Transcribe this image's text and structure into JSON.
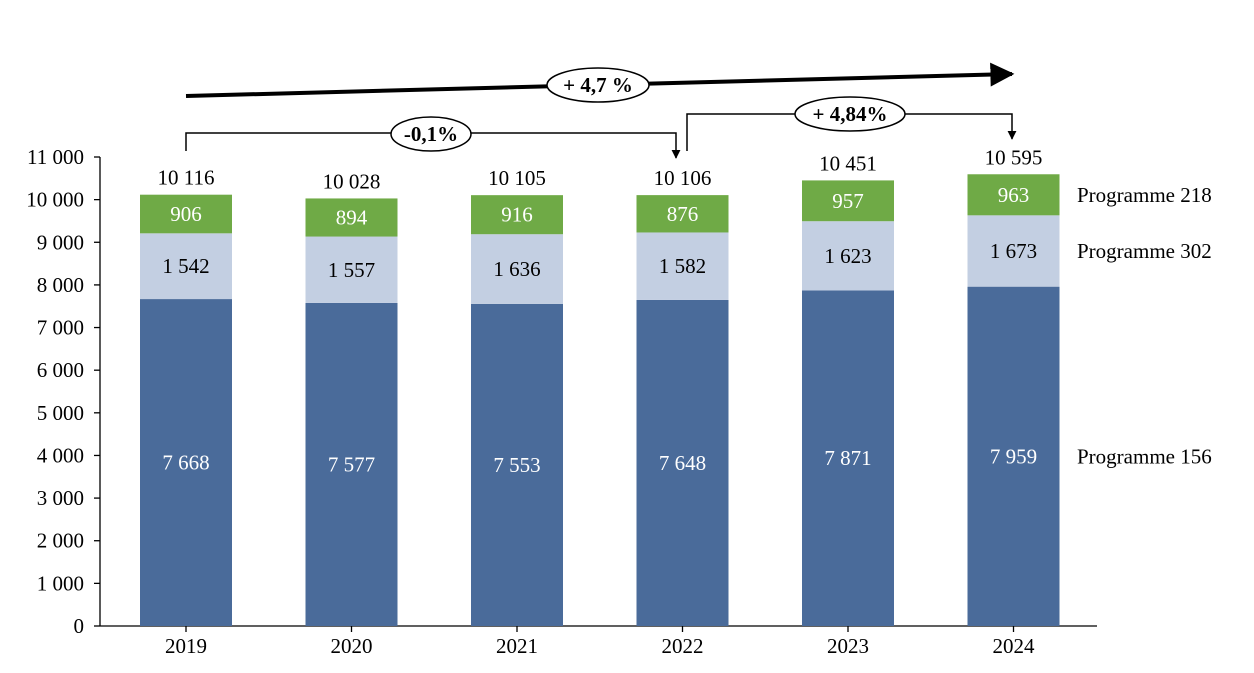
{
  "chart_data": {
    "type": "bar",
    "stacked": true,
    "categories": [
      "2019",
      "2020",
      "2021",
      "2022",
      "2023",
      "2024"
    ],
    "series": [
      {
        "name": "Programme 156",
        "color": "#4a6b9a",
        "values": [
          7668,
          7577,
          7553,
          7648,
          7871,
          7959
        ],
        "labels": [
          "7 668",
          "7 577",
          "7 553",
          "7 648",
          "7 871",
          "7 959"
        ]
      },
      {
        "name": "Programme 302",
        "color": "#c3cfe2",
        "values": [
          1542,
          1557,
          1636,
          1582,
          1623,
          1673
        ],
        "labels": [
          "1 542",
          "1 557",
          "1 636",
          "1 582",
          "1 623",
          "1 673"
        ]
      },
      {
        "name": "Programme 218",
        "color": "#6faa46",
        "values": [
          906,
          894,
          916,
          876,
          957,
          963
        ],
        "labels": [
          "906",
          "894",
          "916",
          "876",
          "957",
          "963"
        ]
      }
    ],
    "totals": [
      10116,
      10028,
      10105,
      10106,
      10451,
      10595
    ],
    "total_labels": [
      "10 116",
      "10 028",
      "10 105",
      "10 106",
      "10 451",
      "10 595"
    ],
    "ylim": [
      0,
      11000
    ],
    "yticks": [
      0,
      1000,
      2000,
      3000,
      4000,
      5000,
      6000,
      7000,
      8000,
      9000,
      10000,
      11000
    ],
    "ytick_labels": [
      "0",
      "1 000",
      "2 000",
      "3 000",
      "4 000",
      "5 000",
      "6 000",
      "7 000",
      "8 000",
      "9 000",
      "10 000",
      "11 000"
    ],
    "grid": false,
    "legend_position": "right",
    "annotations": {
      "overall": {
        "label": "+ 4,7 %",
        "from": "2019",
        "to": "2024"
      },
      "period1": {
        "label": "-0,1%",
        "from": "2019",
        "to": "2022"
      },
      "period2": {
        "label": "+ 4,84%",
        "from": "2022",
        "to": "2024"
      }
    }
  }
}
